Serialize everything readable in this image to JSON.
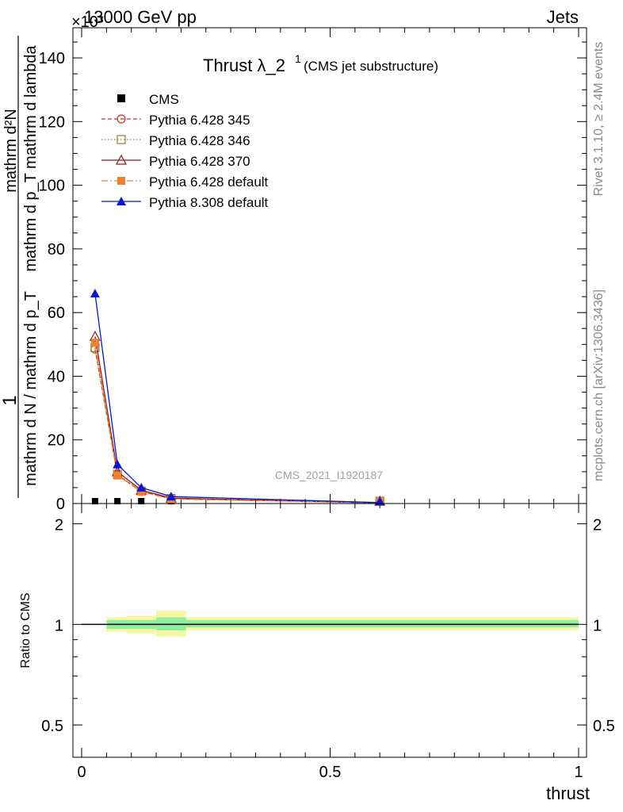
{
  "header": {
    "exponent_label": "×10³",
    "energy_label": "13000 GeV pp",
    "category_label": "Jets"
  },
  "side_labels": {
    "rivet": "Rivet 3.1.10, ≥ 2.4M events",
    "mcplots": "mcplots.cern.ch [arXiv:1306.3436]"
  },
  "main_panel": {
    "title_main": "Thrust λ_2",
    "title_sup": "1",
    "title_sub": "(CMS jet substructure)",
    "watermark": "CMS_2021_I1920187",
    "ylabel_numerator": "mathrm d²N",
    "ylabel_inner": "mathrm d p_T mathrm d lambda",
    "ylabel_denominator": "mathrm d N / mathrm d p_T",
    "ylabel_one": "1",
    "yticks": [
      "0",
      "20",
      "40",
      "60",
      "80",
      "100",
      "120",
      "140"
    ]
  },
  "ratio_panel": {
    "ylabel": "Ratio to CMS",
    "yticks_left": [
      "0.5",
      "1",
      "2"
    ],
    "yticks_right": [
      "0.5",
      "1",
      "2"
    ]
  },
  "xaxis": {
    "label": "thrust",
    "ticks": [
      "0",
      "0.5",
      "1"
    ]
  },
  "chart_data": {
    "type": "line",
    "x_unit_scale": "×10³ on y",
    "xlim": [
      -0.01,
      1.01
    ],
    "ylim": [
      0,
      150
    ],
    "ratio_ylim": [
      0.4,
      2.3
    ],
    "ratio_log_scale": true,
    "grid": false,
    "legend_position": "top-left",
    "series": [
      {
        "name": "CMS",
        "color": "#000000",
        "marker": "square-filled",
        "line": "none",
        "x": [
          0.027,
          0.072,
          0.12,
          0.18,
          0.6
        ],
        "y": [
          0.05,
          0.05,
          0.05,
          0.02,
          0.01
        ]
      },
      {
        "name": "Pythia 6.428 345",
        "color": "#c0392b",
        "marker": "circle-open",
        "line": "dashed",
        "x": [
          0.027,
          0.072,
          0.12,
          0.18,
          0.6
        ],
        "y": [
          48.5,
          9.0,
          3.8,
          1.5,
          0.2
        ]
      },
      {
        "name": "Pythia 6.428 346",
        "color": "#a0782a",
        "marker": "square-open",
        "line": "dotted",
        "x": [
          0.027,
          0.072,
          0.12,
          0.18,
          0.6
        ],
        "y": [
          49.0,
          9.2,
          3.9,
          1.6,
          0.2
        ]
      },
      {
        "name": "Pythia 6.428 370",
        "color": "#8b1a1a",
        "marker": "triangle-open",
        "line": "solid",
        "x": [
          0.027,
          0.072,
          0.12,
          0.18,
          0.6
        ],
        "y": [
          52.5,
          10.0,
          4.2,
          1.7,
          0.2
        ]
      },
      {
        "name": "Pythia 6.428 default",
        "color": "#f07f30",
        "marker": "square-filled",
        "line": "dashdot",
        "x": [
          0.027,
          0.072,
          0.12,
          0.18,
          0.6
        ],
        "y": [
          50.5,
          8.8,
          3.7,
          1.4,
          0.2
        ]
      },
      {
        "name": "Pythia 8.308 default",
        "color": "#0b16d4",
        "marker": "triangle-filled",
        "line": "solid",
        "x": [
          0.027,
          0.072,
          0.12,
          0.18,
          0.6
        ],
        "y": [
          66.0,
          12.3,
          5.0,
          2.2,
          0.3
        ]
      }
    ],
    "ratio_bands": [
      {
        "x0": 0.05,
        "x1": 0.09,
        "inner": [
          0.97,
          1.03
        ],
        "outer": [
          0.95,
          1.05
        ]
      },
      {
        "x0": 0.09,
        "x1": 0.15,
        "inner": [
          0.97,
          1.03
        ],
        "outer": [
          0.94,
          1.06
        ]
      },
      {
        "x0": 0.15,
        "x1": 0.21,
        "inner": [
          0.96,
          1.05
        ],
        "outer": [
          0.92,
          1.1
        ]
      },
      {
        "x0": 0.21,
        "x1": 1.0,
        "inner": [
          0.98,
          1.03
        ],
        "outer": [
          0.96,
          1.05
        ]
      }
    ],
    "ratio_line": 1.0
  }
}
